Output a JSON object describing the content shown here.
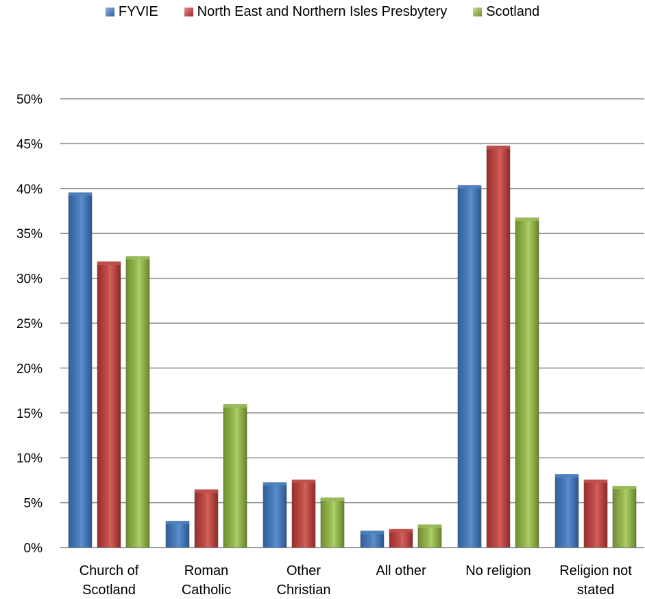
{
  "chart_data": {
    "type": "bar",
    "categories": [
      [
        "Church of",
        "Scotland"
      ],
      [
        "Roman",
        "Catholic"
      ],
      [
        "Other",
        "Christian"
      ],
      [
        "All other"
      ],
      [
        "No religion"
      ],
      [
        "Religion not",
        "stated"
      ]
    ],
    "series": [
      {
        "name": "FYVIE",
        "values": [
          39.5,
          2.9,
          7.2,
          1.8,
          40.3,
          8.1
        ]
      },
      {
        "name": "North East and Northern Isles Presbytery",
        "values": [
          31.8,
          6.4,
          7.5,
          2.0,
          44.7,
          7.5
        ]
      },
      {
        "name": "Scotland",
        "values": [
          32.4,
          15.9,
          5.5,
          2.5,
          36.7,
          6.8
        ]
      }
    ],
    "colors": [
      "#4f81bd",
      "#c0504d",
      "#9bbb59"
    ],
    "ylim": [
      0,
      50
    ],
    "yticks": [
      "0%",
      "5%",
      "10%",
      "15%",
      "20%",
      "25%",
      "30%",
      "35%",
      "40%",
      "45%",
      "50%"
    ],
    "grid": true,
    "legend_position": "top"
  }
}
